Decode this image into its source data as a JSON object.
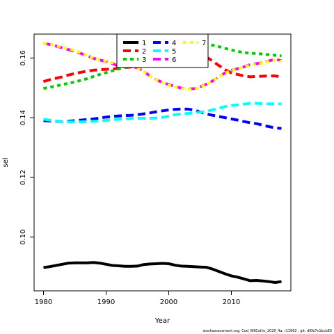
{
  "chart_data": {
    "type": "line",
    "title": "",
    "xlabel": "Year",
    "ylabel": "sel",
    "xlim": [
      1978.5,
      2019.5
    ],
    "ylim": [
      0.082,
      0.168
    ],
    "x_ticks": [
      1980,
      1990,
      2000,
      2010
    ],
    "y_ticks": [
      0.1,
      0.12,
      0.14,
      0.16
    ],
    "y_tick_labels": [
      "0.10",
      "0.12",
      "0.14",
      "0.16"
    ],
    "grid": false,
    "legend_position": "top-center",
    "footnote": "stockassessment.org, Cod_WKCeltic_2020_4a, r11962 , git: df0b7c1bcb83",
    "x": [
      1980,
      1981,
      1982,
      1983,
      1984,
      1985,
      1986,
      1987,
      1988,
      1989,
      1990,
      1991,
      1992,
      1993,
      1994,
      1995,
      1996,
      1997,
      1998,
      1999,
      2000,
      2001,
      2002,
      2003,
      2004,
      2005,
      2006,
      2007,
      2008,
      2009,
      2010,
      2011,
      2012,
      2013,
      2014,
      2015,
      2016,
      2017,
      2018
    ],
    "series": [
      {
        "name": "1",
        "color": "#000000",
        "dash": "solid",
        "values": [
          0.0898,
          0.0901,
          0.0905,
          0.0909,
          0.0913,
          0.0914,
          0.0914,
          0.0914,
          0.0915,
          0.0913,
          0.0909,
          0.0905,
          0.0904,
          0.0902,
          0.0902,
          0.0903,
          0.0908,
          0.091,
          0.0911,
          0.0912,
          0.0911,
          0.0906,
          0.0903,
          0.0902,
          0.0901,
          0.09,
          0.0899,
          0.0893,
          0.0885,
          0.0877,
          0.087,
          0.0866,
          0.086,
          0.0854,
          0.0855,
          0.0853,
          0.0851,
          0.0848,
          0.0851
        ]
      },
      {
        "name": "2",
        "color": "#ff0000",
        "dash": "dashed",
        "values": [
          0.1521,
          0.1527,
          0.1532,
          0.1537,
          0.1543,
          0.1548,
          0.1552,
          0.1556,
          0.1559,
          0.1561,
          0.1562,
          0.1563,
          0.1565,
          0.1568,
          0.157,
          0.1573,
          0.1578,
          0.1584,
          0.159,
          0.1595,
          0.1601,
          0.1607,
          0.1613,
          0.1617,
          0.1617,
          0.1612,
          0.1603,
          0.159,
          0.1575,
          0.1561,
          0.155,
          0.1545,
          0.154,
          0.1537,
          0.1538,
          0.1539,
          0.154,
          0.154,
          0.1536
        ]
      },
      {
        "name": "3",
        "color": "#00cd00",
        "dash": "dotted",
        "values": [
          0.1498,
          0.1502,
          0.1506,
          0.1511,
          0.1515,
          0.152,
          0.1525,
          0.1531,
          0.1538,
          0.1545,
          0.1551,
          0.1557,
          0.1563,
          0.1568,
          0.1573,
          0.1578,
          0.1583,
          0.1589,
          0.1595,
          0.1601,
          0.1607,
          0.1613,
          0.1619,
          0.1627,
          0.1634,
          0.1642,
          0.1647,
          0.1643,
          0.1638,
          0.1632,
          0.1627,
          0.1622,
          0.1618,
          0.1616,
          0.1615,
          0.1613,
          0.1611,
          0.1609,
          0.1607
        ]
      },
      {
        "name": "4",
        "color": "#0000ff",
        "dash": "dashed",
        "values": [
          0.139,
          0.1389,
          0.1388,
          0.1387,
          0.1388,
          0.139,
          0.1392,
          0.1394,
          0.1396,
          0.1399,
          0.1402,
          0.1404,
          0.1406,
          0.1407,
          0.1408,
          0.141,
          0.1413,
          0.1416,
          0.142,
          0.1423,
          0.1426,
          0.1428,
          0.1429,
          0.1429,
          0.1426,
          0.1419,
          0.1413,
          0.1408,
          0.1404,
          0.14,
          0.1396,
          0.1392,
          0.1387,
          0.1383,
          0.138,
          0.1375,
          0.137,
          0.1366,
          0.1364
        ]
      },
      {
        "name": "5",
        "color": "#00ffff",
        "dash": "dashed",
        "values": [
          0.1395,
          0.1392,
          0.1389,
          0.1387,
          0.1386,
          0.1386,
          0.1386,
          0.1387,
          0.1388,
          0.1389,
          0.1391,
          0.1393,
          0.1395,
          0.1396,
          0.1397,
          0.1398,
          0.1398,
          0.1398,
          0.1399,
          0.1401,
          0.1405,
          0.141,
          0.1413,
          0.1414,
          0.1416,
          0.1418,
          0.1421,
          0.1426,
          0.1432,
          0.1437,
          0.1441,
          0.1443,
          0.1445,
          0.1448,
          0.1448,
          0.1447,
          0.1446,
          0.1446,
          0.1446
        ]
      },
      {
        "name": "6",
        "color": "#ff00ff",
        "dash": "dashed",
        "values": [
          0.165,
          0.1645,
          0.164,
          0.1634,
          0.1628,
          0.1622,
          0.1615,
          0.1607,
          0.1599,
          0.1593,
          0.1588,
          0.1581,
          0.1573,
          0.157,
          0.1571,
          0.1568,
          0.1555,
          0.154,
          0.1527,
          0.1518,
          0.1511,
          0.1505,
          0.1499,
          0.1496,
          0.1497,
          0.1503,
          0.1512,
          0.1523,
          0.1537,
          0.155,
          0.1559,
          0.1564,
          0.157,
          0.1578,
          0.1581,
          0.1584,
          0.159,
          0.1596,
          0.1591
        ]
      },
      {
        "name": "7",
        "color": "#ffff00",
        "dash": "dotted",
        "values": [
          0.165,
          0.1646,
          0.1641,
          0.1636,
          0.1631,
          0.1625,
          0.1617,
          0.1608,
          0.16,
          0.1593,
          0.1589,
          0.1584,
          0.1578,
          0.1575,
          0.1573,
          0.1566,
          0.1554,
          0.154,
          0.1527,
          0.1517,
          0.1509,
          0.1503,
          0.1498,
          0.1495,
          0.1496,
          0.1502,
          0.1511,
          0.1523,
          0.1537,
          0.1549,
          0.1558,
          0.1564,
          0.157,
          0.1576,
          0.1579,
          0.1583,
          0.1589,
          0.1593,
          0.1589
        ]
      }
    ]
  }
}
